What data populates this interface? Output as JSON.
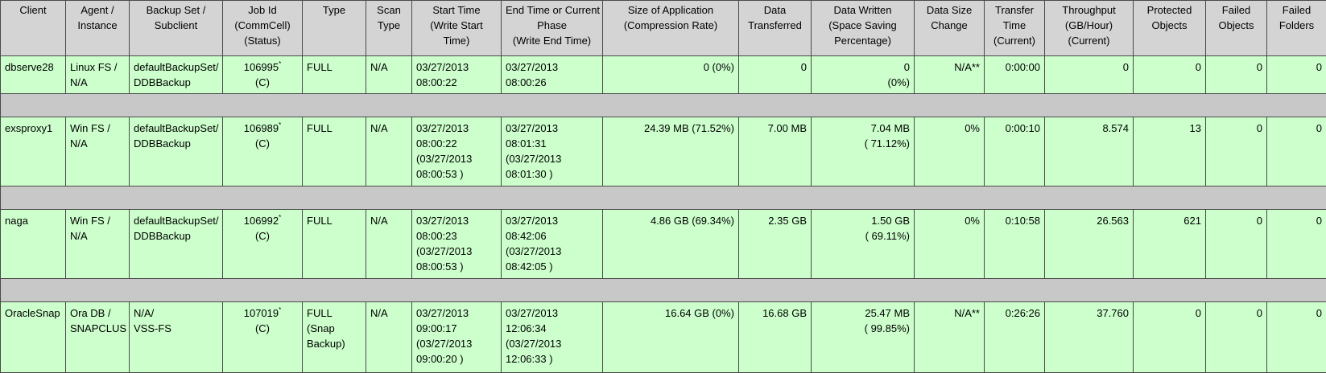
{
  "table": {
    "header": [
      [
        "Client"
      ],
      [
        "Agent /",
        "Instance"
      ],
      [
        "Backup Set /",
        "Subclient"
      ],
      [
        "Job Id",
        "(CommCell)",
        "(Status)"
      ],
      [
        "Type"
      ],
      [
        "Scan",
        "Type"
      ],
      [
        "Start Time",
        "(Write Start",
        "Time)"
      ],
      [
        "End Time or Current",
        "Phase",
        "(Write End Time)"
      ],
      [
        "Size of Application",
        "(Compression Rate)"
      ],
      [
        "Data",
        "Transferred"
      ],
      [
        "Data Written",
        "(Space Saving",
        "Percentage)"
      ],
      [
        "Data Size",
        "Change"
      ],
      [
        "Transfer",
        "Time",
        "(Current)"
      ],
      [
        "Throughput",
        "(GB/Hour)",
        "(Current)"
      ],
      [
        "Protected",
        "Objects"
      ],
      [
        "Failed",
        "Objects"
      ],
      [
        "Failed",
        "Folders"
      ]
    ],
    "rows": [
      {
        "job_mark": "*",
        "cells": [
          [
            "dbserve28"
          ],
          [
            "Linux FS /",
            "N/A"
          ],
          [
            "defaultBackupSet/",
            "DDBBackup"
          ],
          [
            "106995",
            "(C)"
          ],
          [
            "FULL"
          ],
          [
            "N/A"
          ],
          [
            "03/27/2013",
            "08:00:22"
          ],
          [
            "03/27/2013",
            "08:00:26"
          ],
          [
            "0 (0%)"
          ],
          [
            "0"
          ],
          [
            "0",
            "(0%)"
          ],
          [
            "N/A**"
          ],
          [
            "0:00:00"
          ],
          [
            "0"
          ],
          [
            "0"
          ],
          [
            "0"
          ],
          [
            "0"
          ]
        ]
      },
      {
        "job_mark": "*",
        "cells": [
          [
            "exsproxy1"
          ],
          [
            "Win FS /",
            "N/A"
          ],
          [
            "defaultBackupSet/",
            "DDBBackup"
          ],
          [
            "106989",
            "(C)"
          ],
          [
            "FULL"
          ],
          [
            "N/A"
          ],
          [
            "03/27/2013",
            "08:00:22",
            "(03/27/2013",
            "08:00:53 )"
          ],
          [
            "03/27/2013",
            "08:01:31",
            "(03/27/2013",
            "08:01:30 )"
          ],
          [
            "24.39 MB (71.52%)"
          ],
          [
            "7.00 MB"
          ],
          [
            "7.04 MB",
            "( 71.12%)"
          ],
          [
            "0%"
          ],
          [
            "0:00:10"
          ],
          [
            "8.574"
          ],
          [
            "13"
          ],
          [
            "0"
          ],
          [
            "0"
          ]
        ]
      },
      {
        "job_mark": "*",
        "cells": [
          [
            "naga"
          ],
          [
            "Win FS /",
            "N/A"
          ],
          [
            "defaultBackupSet/",
            "DDBBackup"
          ],
          [
            "106992",
            "(C)"
          ],
          [
            "FULL"
          ],
          [
            "N/A"
          ],
          [
            "03/27/2013",
            "08:00:23",
            "(03/27/2013",
            "08:00:53 )"
          ],
          [
            "03/27/2013",
            "08:42:06",
            "(03/27/2013",
            "08:42:05 )"
          ],
          [
            "4.86 GB (69.34%)"
          ],
          [
            "2.35 GB"
          ],
          [
            "1.50 GB",
            "( 69.11%)"
          ],
          [
            "0%"
          ],
          [
            "0:10:58"
          ],
          [
            "26.563"
          ],
          [
            "621"
          ],
          [
            "0"
          ],
          [
            "0"
          ]
        ]
      },
      {
        "job_mark": "*",
        "cells": [
          [
            "OracleSnap"
          ],
          [
            "Ora DB /",
            "SNAPCLUS"
          ],
          [
            "N/A/",
            "VSS-FS"
          ],
          [
            "107019",
            "(C)"
          ],
          [
            "FULL",
            "(Snap",
            "Backup)"
          ],
          [
            "N/A"
          ],
          [
            "03/27/2013",
            "09:00:17",
            "(03/27/2013",
            "09:00:20 )"
          ],
          [
            "03/27/2013",
            "12:06:34",
            "(03/27/2013",
            "12:06:33 )"
          ],
          [
            "16.64 GB (0%)"
          ],
          [
            "16.68 GB"
          ],
          [
            "25.47 MB",
            "( 99.85%)"
          ],
          [
            "N/A**"
          ],
          [
            "0:26:26"
          ],
          [
            "37.760"
          ],
          [
            "0"
          ],
          [
            "0"
          ],
          [
            "0"
          ]
        ]
      }
    ]
  }
}
